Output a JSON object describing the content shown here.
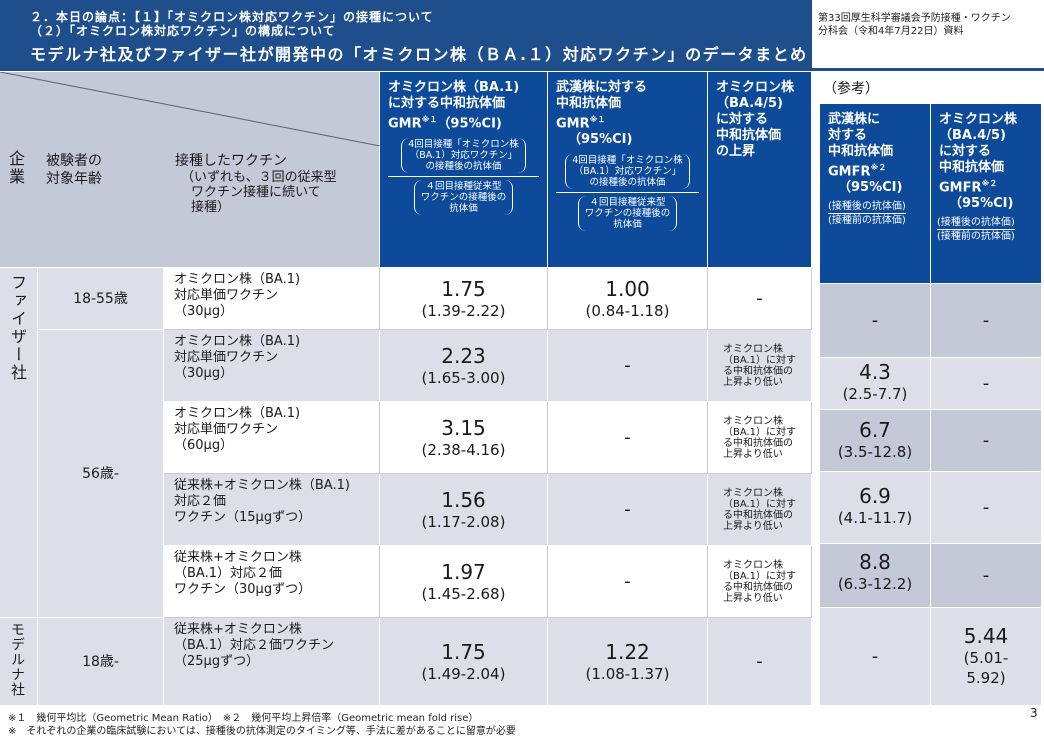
{
  "header": {
    "line1": "２．本日の論点：【１】「オミクロン株対応ワクチン」の接種について",
    "line2": "（２）「オミクロン株対応ワクチン」の構成について",
    "title": "モデルナ社及びファイザー社が開発中の「オミクロン株（ＢＡ.１）対応ワクチン」のデータまとめ",
    "source_line1": "第33回厚生科学審議会予防接種・ワクチン",
    "source_line2": "分科会（令和4年7月22日）資料"
  },
  "columns": {
    "company": "企業",
    "age": [
      "被験者の",
      "対象年齢"
    ],
    "vaccine": [
      "接種したワクチン",
      "（いずれも、３回の従来型",
      "ワクチン接種に続いて",
      "接種）"
    ],
    "ba1": {
      "title": [
        "オミクロン株（BA.1)",
        "に対する中和抗体価",
        "GMR",
        "※１",
        "（95%CI)"
      ],
      "num": [
        "4回目接種「オミクロン株",
        "（BA.1）対応ワクチン」",
        "の接種後の抗体価"
      ],
      "den": [
        "４回目接種従来型",
        "ワクチンの接種後の",
        "抗体価"
      ]
    },
    "wuhan": {
      "title": [
        "武漢株に対する",
        "中和抗体価",
        "GMR",
        "※１",
        "（95%CI)"
      ],
      "num": [
        "4回目接種「オミクロン株",
        "（BA.1）対応ワクチン」",
        "の接種後の抗体価"
      ],
      "den": [
        "４回目接種従来型",
        "ワクチンの接種後の",
        "抗体価"
      ]
    },
    "ba45": [
      "オミクロン株",
      "（BA.4/5)",
      "に対する",
      "中和抗体価",
      "の上昇"
    ],
    "reference": "（参考）",
    "ref_wuhan": [
      "武漢株に",
      "対する",
      "中和抗体価",
      "GMFR",
      "※２",
      "（95%CI)",
      "(接種後の抗体価)",
      "(接種前の抗体価)"
    ],
    "ref_ba45": [
      "オミクロン株",
      "（BA.4/5)",
      "に対する",
      "中和抗体価",
      "GMFR",
      "※２",
      "（95%CI)",
      "(接種後の抗体価)",
      "(接種前の抗体価)"
    ]
  },
  "companies": {
    "pfizer": "ファイザー社",
    "moderna": "モデルナ社"
  },
  "rows": [
    {
      "age": "18-55歳",
      "vaccine": [
        "オミクロン株（BA.1)",
        "対応単価ワクチン",
        "（30μg）"
      ],
      "ba1": "1.75",
      "ba1_ci": "(1.39-2.22)",
      "wuhan": "1.00",
      "wuhan_ci": "(0.84-1.18)",
      "ba45": "-",
      "ref_wuhan": "-",
      "ref_wuhan_ci": "",
      "ref_ba45": "-",
      "ref_ba45_ci": ""
    },
    {
      "age": "",
      "vaccine": [
        "オミクロン株（BA.1)",
        "対応単価ワクチン",
        "（30μg）"
      ],
      "ba1": "2.23",
      "ba1_ci": "(1.65-3.00)",
      "wuhan": "-",
      "wuhan_ci": "",
      "ba45": [
        "オミクロン株",
        "（BA.1）に対す",
        "る中和抗体価の",
        "上昇より低い"
      ],
      "ref_wuhan": "4.3",
      "ref_wuhan_ci": "(2.5-7.7)",
      "ref_ba45": "-",
      "ref_ba45_ci": ""
    },
    {
      "age": "56歳-",
      "vaccine": [
        "オミクロン株（BA.1)",
        "対応単価ワクチン",
        "（60μg）"
      ],
      "ba1": "3.15",
      "ba1_ci": "(2.38-4.16)",
      "wuhan": "-",
      "wuhan_ci": "",
      "ba45": [
        "オミクロン株",
        "（BA.1）に対す",
        "る中和抗体価の",
        "上昇より低い"
      ],
      "ref_wuhan": "6.7",
      "ref_wuhan_ci": "(3.5-12.8)",
      "ref_ba45": "-",
      "ref_ba45_ci": ""
    },
    {
      "age": "",
      "vaccine": [
        "従来株+オミクロン株（BA.1)",
        "対応２価",
        "ワクチン（15μgずつ）"
      ],
      "ba1": "1.56",
      "ba1_ci": "(1.17-2.08)",
      "wuhan": "-",
      "wuhan_ci": "",
      "ba45": [
        "オミクロン株",
        "（BA.1）に対す",
        "る中和抗体価の",
        "上昇より低い"
      ],
      "ref_wuhan": "6.9",
      "ref_wuhan_ci": "(4.1-11.7)",
      "ref_ba45": "-",
      "ref_ba45_ci": ""
    },
    {
      "age": "",
      "vaccine": [
        "従来株+オミクロン株",
        "（BA.1）対応２価",
        "ワクチン（30μgずつ）"
      ],
      "ba1": "1.97",
      "ba1_ci": "(1.45-2.68)",
      "wuhan": "-",
      "wuhan_ci": "",
      "ba45": [
        "オミクロン株",
        "（BA.1）に対す",
        "る中和抗体価の",
        "上昇より低い"
      ],
      "ref_wuhan": "8.8",
      "ref_wuhan_ci": "(6.3-12.2)",
      "ref_ba45": "-",
      "ref_ba45_ci": ""
    },
    {
      "age": "18歳-",
      "vaccine": [
        "従来株+オミクロン株",
        "（BA.1）対応２価ワクチン",
        "（25μgずつ）"
      ],
      "ba1": "1.75",
      "ba1_ci": "(1.49-2.04)",
      "wuhan": "1.22",
      "wuhan_ci": "(1.08-1.37)",
      "ba45": "-",
      "ref_wuhan": "-",
      "ref_wuhan_ci": "",
      "ref_ba45": "5.44",
      "ref_ba45_ci": [
        "(5.01-",
        "5.92)"
      ]
    }
  ],
  "footnotes": [
    "※１　幾何平均比（Geometric Mean Ratio）　※２　幾何平均上昇倍率（Geometric mean fold rise）",
    "※　それぞれの企業の臨床試験においては、接種後の抗体測定のタイミング等、手法に差があることに留意が必要"
  ],
  "page_number": "3",
  "colors": {
    "header_blue": "#1f4e8c",
    "cell_blue": "#0d4b9a",
    "cell_gray": "#dcdfe8",
    "cell_dark_gray": "#c4c9d8"
  }
}
